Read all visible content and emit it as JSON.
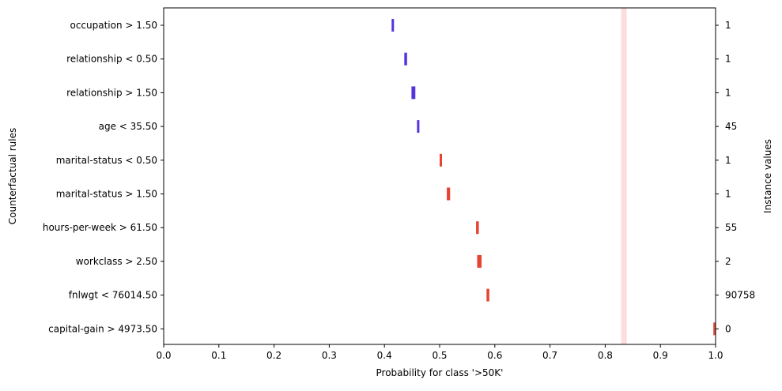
{
  "chart_data": {
    "type": "interval",
    "xlabel": "Probability for class '>50K'",
    "ylabel_left": "Counterfactual rules",
    "ylabel_right": "Instance values",
    "xlim": [
      0.0,
      1.0
    ],
    "xticks": [
      "0.0",
      "0.1",
      "0.2",
      "0.3",
      "0.4",
      "0.5",
      "0.6",
      "0.7",
      "0.8",
      "0.9",
      "1.0"
    ],
    "baseline_band": {
      "low": 0.829,
      "high": 0.839,
      "color": "#fddddb"
    },
    "colors": {
      "below_half": "#5533dd",
      "above_half": "#e64433"
    },
    "rules": [
      {
        "label": "occupation > 1.50",
        "instance_value": "1",
        "low": 0.413,
        "high": 0.417
      },
      {
        "label": "relationship < 0.50",
        "instance_value": "1",
        "low": 0.436,
        "high": 0.441
      },
      {
        "label": "relationship > 1.50",
        "instance_value": "1",
        "low": 0.449,
        "high": 0.456
      },
      {
        "label": "age < 35.50",
        "instance_value": "45",
        "low": 0.459,
        "high": 0.463
      },
      {
        "label": "marital-status < 0.50",
        "instance_value": "1",
        "low": 0.5,
        "high": 0.504
      },
      {
        "label": "marital-status > 1.50",
        "instance_value": "1",
        "low": 0.513,
        "high": 0.519
      },
      {
        "label": "hours-per-week > 61.50",
        "instance_value": "55",
        "low": 0.566,
        "high": 0.571
      },
      {
        "label": "workclass > 2.50",
        "instance_value": "2",
        "low": 0.568,
        "high": 0.576
      },
      {
        "label": "fnlwgt < 76014.50",
        "instance_value": "90758",
        "low": 0.585,
        "high": 0.59
      },
      {
        "label": "capital-gain > 4973.50",
        "instance_value": "0",
        "low": 0.996,
        "high": 1.0
      }
    ]
  }
}
